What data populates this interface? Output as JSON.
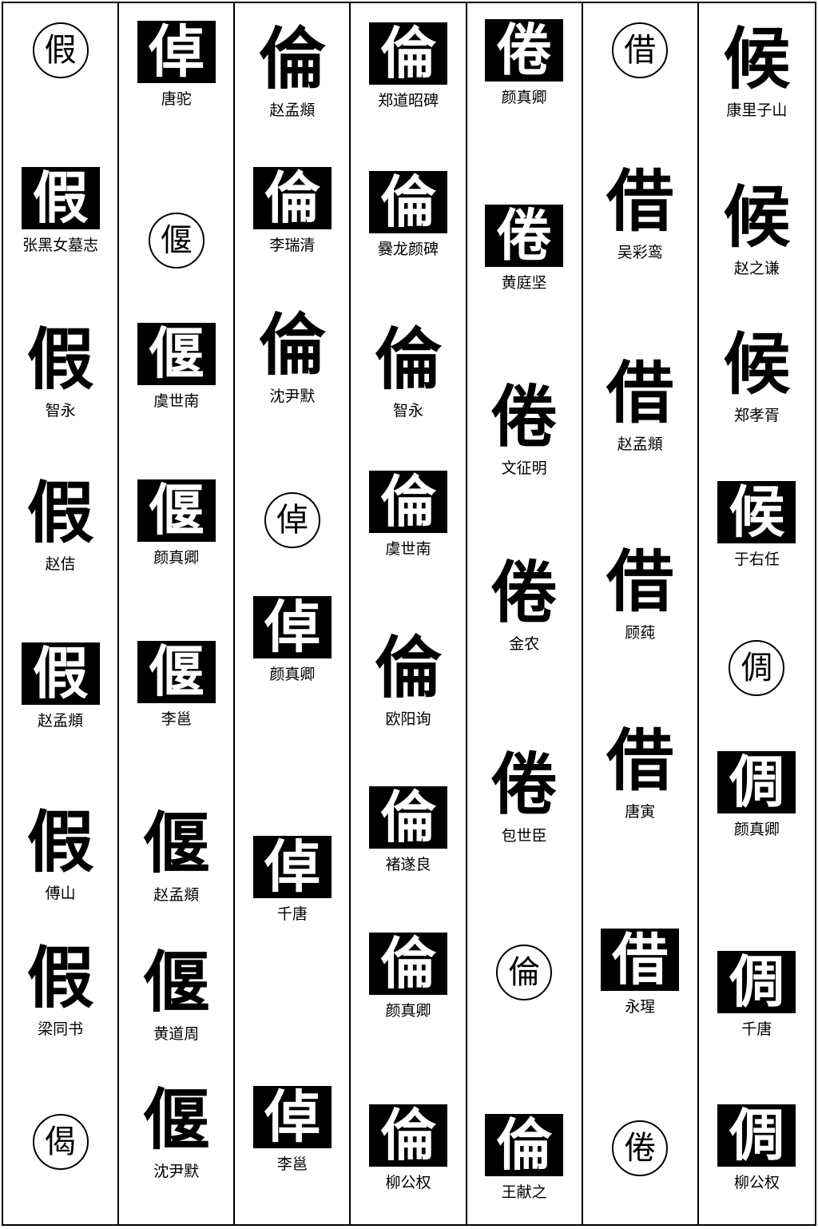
{
  "columns": [
    {
      "items": [
        {
          "kind": "circle",
          "char": "假"
        },
        {
          "kind": "entry",
          "char": "假",
          "label": "张黑女墓志",
          "style": "tile"
        },
        {
          "kind": "entry",
          "char": "假",
          "label": "智永",
          "style": "ink"
        },
        {
          "kind": "entry",
          "char": "假",
          "label": "赵佶",
          "style": "ink"
        },
        {
          "kind": "entry",
          "char": "假",
          "label": "赵孟頫",
          "style": "tile"
        },
        {
          "kind": "entry",
          "char": "假",
          "label": "傅山",
          "style": "ink"
        },
        {
          "kind": "entry",
          "char": "假",
          "label": "梁同书",
          "style": "ink"
        },
        {
          "kind": "circle",
          "char": "偈"
        }
      ]
    },
    {
      "items": [
        {
          "kind": "entry",
          "char": "倬",
          "label": "唐驼",
          "style": "tile"
        },
        {
          "kind": "circle",
          "char": "偃"
        },
        {
          "kind": "entry",
          "char": "偃",
          "label": "虞世南",
          "style": "tile"
        },
        {
          "kind": "entry",
          "char": "偃",
          "label": "颜真卿",
          "style": "tile"
        },
        {
          "kind": "entry",
          "char": "偃",
          "label": "李邕",
          "style": "tile"
        },
        {
          "kind": "entry",
          "char": "偃",
          "label": "赵孟頫",
          "style": "ink"
        },
        {
          "kind": "entry",
          "char": "偃",
          "label": "黄道周",
          "style": "ink"
        },
        {
          "kind": "entry",
          "char": "偃",
          "label": "沈尹默",
          "style": "ink"
        }
      ]
    },
    {
      "items": [
        {
          "kind": "entry",
          "char": "倫",
          "label": "赵孟頫",
          "style": "ink"
        },
        {
          "kind": "entry",
          "char": "倫",
          "label": "李瑞清",
          "style": "tile"
        },
        {
          "kind": "entry",
          "char": "倫",
          "label": "沈尹默",
          "style": "ink"
        },
        {
          "kind": "circle",
          "char": "倬"
        },
        {
          "kind": "entry",
          "char": "倬",
          "label": "颜真卿",
          "style": "tile"
        },
        {
          "kind": "entry",
          "char": "倬",
          "label": "千唐",
          "style": "tile"
        },
        {
          "kind": "entry",
          "char": "倬",
          "label": "李邕",
          "style": "tile"
        }
      ]
    },
    {
      "items": [
        {
          "kind": "entry",
          "char": "倫",
          "label": "郑道昭碑",
          "style": "tile"
        },
        {
          "kind": "entry",
          "char": "倫",
          "label": "爨龙颜碑",
          "style": "tile"
        },
        {
          "kind": "entry",
          "char": "倫",
          "label": "智永",
          "style": "ink"
        },
        {
          "kind": "entry",
          "char": "倫",
          "label": "虞世南",
          "style": "tile"
        },
        {
          "kind": "entry",
          "char": "倫",
          "label": "欧阳询",
          "style": "ink"
        },
        {
          "kind": "entry",
          "char": "倫",
          "label": "褚遂良",
          "style": "tile"
        },
        {
          "kind": "entry",
          "char": "倫",
          "label": "颜真卿",
          "style": "tile"
        },
        {
          "kind": "entry",
          "char": "倫",
          "label": "柳公权",
          "style": "tile"
        }
      ]
    },
    {
      "items": [
        {
          "kind": "entry",
          "char": "倦",
          "label": "颜真卿",
          "style": "tile"
        },
        {
          "kind": "entry",
          "char": "倦",
          "label": "黄庭坚",
          "style": "tile"
        },
        {
          "kind": "entry",
          "char": "倦",
          "label": "文征明",
          "style": "ink"
        },
        {
          "kind": "entry",
          "char": "倦",
          "label": "金农",
          "style": "ink"
        },
        {
          "kind": "entry",
          "char": "倦",
          "label": "包世臣",
          "style": "ink"
        },
        {
          "kind": "circle",
          "char": "倫"
        },
        {
          "kind": "entry",
          "char": "倫",
          "label": "王献之",
          "style": "tile"
        }
      ]
    },
    {
      "items": [
        {
          "kind": "circle",
          "char": "借"
        },
        {
          "kind": "entry",
          "char": "借",
          "label": "吴彩鸾",
          "style": "ink"
        },
        {
          "kind": "entry",
          "char": "借",
          "label": "赵孟頫",
          "style": "ink"
        },
        {
          "kind": "entry",
          "char": "借",
          "label": "顾莼",
          "style": "ink"
        },
        {
          "kind": "entry",
          "char": "借",
          "label": "唐寅",
          "style": "ink"
        },
        {
          "kind": "entry",
          "char": "借",
          "label": "永瑆",
          "style": "tile"
        },
        {
          "kind": "circle",
          "char": "倦"
        }
      ]
    },
    {
      "items": [
        {
          "kind": "entry",
          "char": "候",
          "label": "康里子山",
          "style": "ink"
        },
        {
          "kind": "entry",
          "char": "候",
          "label": "赵之谦",
          "style": "ink"
        },
        {
          "kind": "entry",
          "char": "候",
          "label": "郑孝胥",
          "style": "ink"
        },
        {
          "kind": "entry",
          "char": "候",
          "label": "于右任",
          "style": "tile"
        },
        {
          "kind": "circle",
          "char": "倜"
        },
        {
          "kind": "entry",
          "char": "倜",
          "label": "颜真卿",
          "style": "tile"
        },
        {
          "kind": "entry",
          "char": "倜",
          "label": "千唐",
          "style": "tile"
        },
        {
          "kind": "entry",
          "char": "倜",
          "label": "柳公权",
          "style": "tile"
        }
      ]
    }
  ]
}
